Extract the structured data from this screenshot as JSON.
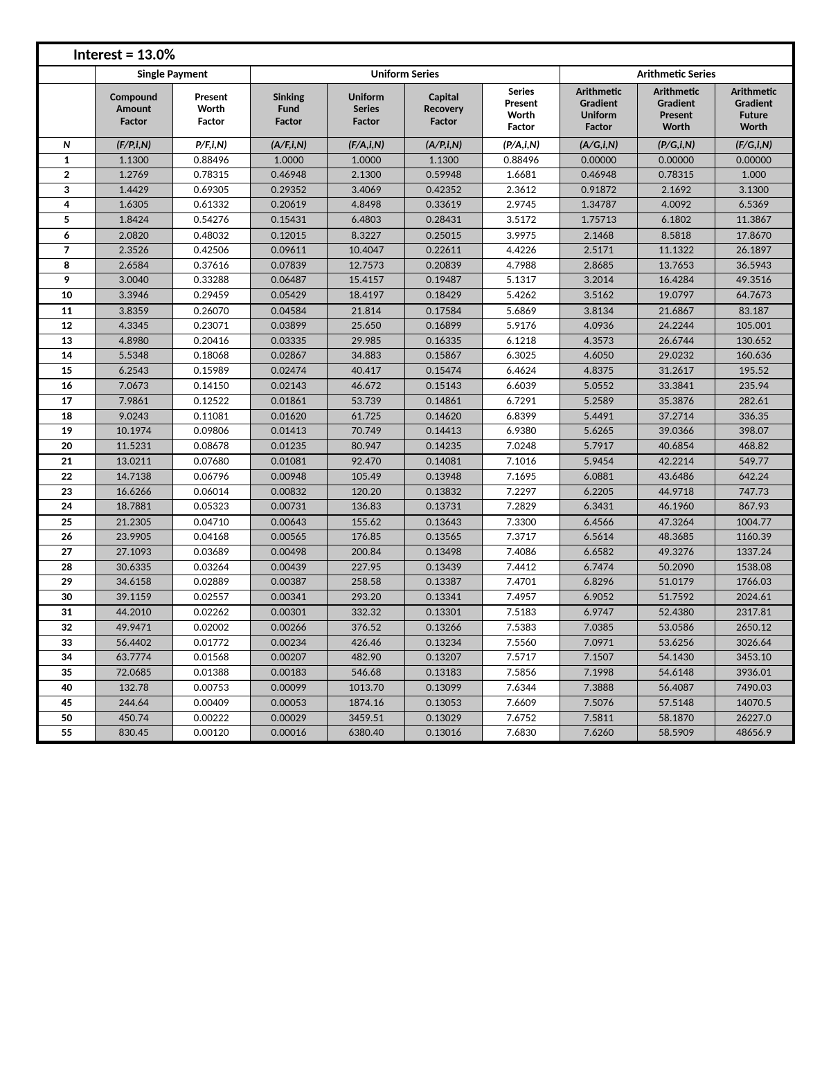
{
  "title": "Interest = 13.0%",
  "group_headers": [
    "Single Payment",
    "Uniform Series",
    "Arithmetic Series"
  ],
  "group_spans": [
    2,
    4,
    3
  ],
  "factor_headers": [
    "Compound Amount Factor",
    "Present Worth Factor",
    "Sinking Fund Factor",
    "Uniform Series Factor",
    "Capital Recovery Factor",
    "Series Present Worth Factor",
    "Arithmetic Gradient Uniform Factor",
    "Arithmetic Gradient Present Worth",
    "Arithmetic Gradient Future Worth"
  ],
  "n_label": "N",
  "notations": [
    "(F/P,i,N)",
    "P/F,i,N)",
    "(A/F,i,N)",
    "(F/A,i,N)",
    "(A/P,i,N)",
    "(P/A,i,N)",
    "(A/G,i,N)",
    "(P/G,i,N)",
    "(F/G,i,N)"
  ],
  "shaded_cols": [
    1,
    3,
    4,
    5,
    7,
    8,
    9
  ],
  "block_ends": [
    5,
    10,
    15,
    20,
    24,
    30,
    35,
    55
  ],
  "rows": [
    {
      "n": "1",
      "v": [
        "1.1300",
        "0.88496",
        "1.0000",
        "1.0000",
        "1.1300",
        "0.88496",
        "0.00000",
        "0.00000",
        "0.00000"
      ]
    },
    {
      "n": "2",
      "v": [
        "1.2769",
        "0.78315",
        "0.46948",
        "2.1300",
        "0.59948",
        "1.6681",
        "0.46948",
        "0.78315",
        "1.000"
      ]
    },
    {
      "n": "3",
      "v": [
        "1.4429",
        "0.69305",
        "0.29352",
        "3.4069",
        "0.42352",
        "2.3612",
        "0.91872",
        "2.1692",
        "3.1300"
      ]
    },
    {
      "n": "4",
      "v": [
        "1.6305",
        "0.61332",
        "0.20619",
        "4.8498",
        "0.33619",
        "2.9745",
        "1.34787",
        "4.0092",
        "6.5369"
      ]
    },
    {
      "n": "5",
      "v": [
        "1.8424",
        "0.54276",
        "0.15431",
        "6.4803",
        "0.28431",
        "3.5172",
        "1.75713",
        "6.1802",
        "11.3867"
      ]
    },
    {
      "n": "6",
      "v": [
        "2.0820",
        "0.48032",
        "0.12015",
        "8.3227",
        "0.25015",
        "3.9975",
        "2.1468",
        "8.5818",
        "17.8670"
      ]
    },
    {
      "n": "7",
      "v": [
        "2.3526",
        "0.42506",
        "0.09611",
        "10.4047",
        "0.22611",
        "4.4226",
        "2.5171",
        "11.1322",
        "26.1897"
      ]
    },
    {
      "n": "8",
      "v": [
        "2.6584",
        "0.37616",
        "0.07839",
        "12.7573",
        "0.20839",
        "4.7988",
        "2.8685",
        "13.7653",
        "36.5943"
      ]
    },
    {
      "n": "9",
      "v": [
        "3.0040",
        "0.33288",
        "0.06487",
        "15.4157",
        "0.19487",
        "5.1317",
        "3.2014",
        "16.4284",
        "49.3516"
      ]
    },
    {
      "n": "10",
      "v": [
        "3.3946",
        "0.29459",
        "0.05429",
        "18.4197",
        "0.18429",
        "5.4262",
        "3.5162",
        "19.0797",
        "64.7673"
      ]
    },
    {
      "n": "11",
      "v": [
        "3.8359",
        "0.26070",
        "0.04584",
        "21.814",
        "0.17584",
        "5.6869",
        "3.8134",
        "21.6867",
        "83.187"
      ]
    },
    {
      "n": "12",
      "v": [
        "4.3345",
        "0.23071",
        "0.03899",
        "25.650",
        "0.16899",
        "5.9176",
        "4.0936",
        "24.2244",
        "105.001"
      ]
    },
    {
      "n": "13",
      "v": [
        "4.8980",
        "0.20416",
        "0.03335",
        "29.985",
        "0.16335",
        "6.1218",
        "4.3573",
        "26.6744",
        "130.652"
      ]
    },
    {
      "n": "14",
      "v": [
        "5.5348",
        "0.18068",
        "0.02867",
        "34.883",
        "0.15867",
        "6.3025",
        "4.6050",
        "29.0232",
        "160.636"
      ]
    },
    {
      "n": "15",
      "v": [
        "6.2543",
        "0.15989",
        "0.02474",
        "40.417",
        "0.15474",
        "6.4624",
        "4.8375",
        "31.2617",
        "195.52"
      ]
    },
    {
      "n": "16",
      "v": [
        "7.0673",
        "0.14150",
        "0.02143",
        "46.672",
        "0.15143",
        "6.6039",
        "5.0552",
        "33.3841",
        "235.94"
      ]
    },
    {
      "n": "17",
      "v": [
        "7.9861",
        "0.12522",
        "0.01861",
        "53.739",
        "0.14861",
        "6.7291",
        "5.2589",
        "35.3876",
        "282.61"
      ]
    },
    {
      "n": "18",
      "v": [
        "9.0243",
        "0.11081",
        "0.01620",
        "61.725",
        "0.14620",
        "6.8399",
        "5.4491",
        "37.2714",
        "336.35"
      ]
    },
    {
      "n": "19",
      "v": [
        "10.1974",
        "0.09806",
        "0.01413",
        "70.749",
        "0.14413",
        "6.9380",
        "5.6265",
        "39.0366",
        "398.07"
      ]
    },
    {
      "n": "20",
      "v": [
        "11.5231",
        "0.08678",
        "0.01235",
        "80.947",
        "0.14235",
        "7.0248",
        "5.7917",
        "40.6854",
        "468.82"
      ]
    },
    {
      "n": "21",
      "v": [
        "13.0211",
        "0.07680",
        "0.01081",
        "92.470",
        "0.14081",
        "7.1016",
        "5.9454",
        "42.2214",
        "549.77"
      ]
    },
    {
      "n": "22",
      "v": [
        "14.7138",
        "0.06796",
        "0.00948",
        "105.49",
        "0.13948",
        "7.1695",
        "6.0881",
        "43.6486",
        "642.24"
      ]
    },
    {
      "n": "23",
      "v": [
        "16.6266",
        "0.06014",
        "0.00832",
        "120.20",
        "0.13832",
        "7.2297",
        "6.2205",
        "44.9718",
        "747.73"
      ]
    },
    {
      "n": "24",
      "v": [
        "18.7881",
        "0.05323",
        "0.00731",
        "136.83",
        "0.13731",
        "7.2829",
        "6.3431",
        "46.1960",
        "867.93"
      ]
    },
    {
      "n": "25",
      "v": [
        "21.2305",
        "0.04710",
        "0.00643",
        "155.62",
        "0.13643",
        "7.3300",
        "6.4566",
        "47.3264",
        "1004.77"
      ]
    },
    {
      "n": "26",
      "v": [
        "23.9905",
        "0.04168",
        "0.00565",
        "176.85",
        "0.13565",
        "7.3717",
        "6.5614",
        "48.3685",
        "1160.39"
      ]
    },
    {
      "n": "27",
      "v": [
        "27.1093",
        "0.03689",
        "0.00498",
        "200.84",
        "0.13498",
        "7.4086",
        "6.6582",
        "49.3276",
        "1337.24"
      ]
    },
    {
      "n": "28",
      "v": [
        "30.6335",
        "0.03264",
        "0.00439",
        "227.95",
        "0.13439",
        "7.4412",
        "6.7474",
        "50.2090",
        "1538.08"
      ]
    },
    {
      "n": "29",
      "v": [
        "34.6158",
        "0.02889",
        "0.00387",
        "258.58",
        "0.13387",
        "7.4701",
        "6.8296",
        "51.0179",
        "1766.03"
      ]
    },
    {
      "n": "30",
      "v": [
        "39.1159",
        "0.02557",
        "0.00341",
        "293.20",
        "0.13341",
        "7.4957",
        "6.9052",
        "51.7592",
        "2024.61"
      ]
    },
    {
      "n": "31",
      "v": [
        "44.2010",
        "0.02262",
        "0.00301",
        "332.32",
        "0.13301",
        "7.5183",
        "6.9747",
        "52.4380",
        "2317.81"
      ]
    },
    {
      "n": "32",
      "v": [
        "49.9471",
        "0.02002",
        "0.00266",
        "376.52",
        "0.13266",
        "7.5383",
        "7.0385",
        "53.0586",
        "2650.12"
      ]
    },
    {
      "n": "33",
      "v": [
        "56.4402",
        "0.01772",
        "0.00234",
        "426.46",
        "0.13234",
        "7.5560",
        "7.0971",
        "53.6256",
        "3026.64"
      ]
    },
    {
      "n": "34",
      "v": [
        "63.7774",
        "0.01568",
        "0.00207",
        "482.90",
        "0.13207",
        "7.5717",
        "7.1507",
        "54.1430",
        "3453.10"
      ]
    },
    {
      "n": "35",
      "v": [
        "72.0685",
        "0.01388",
        "0.00183",
        "546.68",
        "0.13183",
        "7.5856",
        "7.1998",
        "54.6148",
        "3936.01"
      ]
    },
    {
      "n": "40",
      "v": [
        "132.78",
        "0.00753",
        "0.00099",
        "1013.70",
        "0.13099",
        "7.6344",
        "7.3888",
        "56.4087",
        "7490.03"
      ]
    },
    {
      "n": "45",
      "v": [
        "244.64",
        "0.00409",
        "0.00053",
        "1874.16",
        "0.13053",
        "7.6609",
        "7.5076",
        "57.5148",
        "14070.5"
      ]
    },
    {
      "n": "50",
      "v": [
        "450.74",
        "0.00222",
        "0.00029",
        "3459.51",
        "0.13029",
        "7.6752",
        "7.5811",
        "58.1870",
        "26227.0"
      ]
    },
    {
      "n": "55",
      "v": [
        "830.45",
        "0.00120",
        "0.00016",
        "6380.40",
        "0.13016",
        "7.6830",
        "7.6260",
        "58.5909",
        "48656.9"
      ]
    }
  ]
}
